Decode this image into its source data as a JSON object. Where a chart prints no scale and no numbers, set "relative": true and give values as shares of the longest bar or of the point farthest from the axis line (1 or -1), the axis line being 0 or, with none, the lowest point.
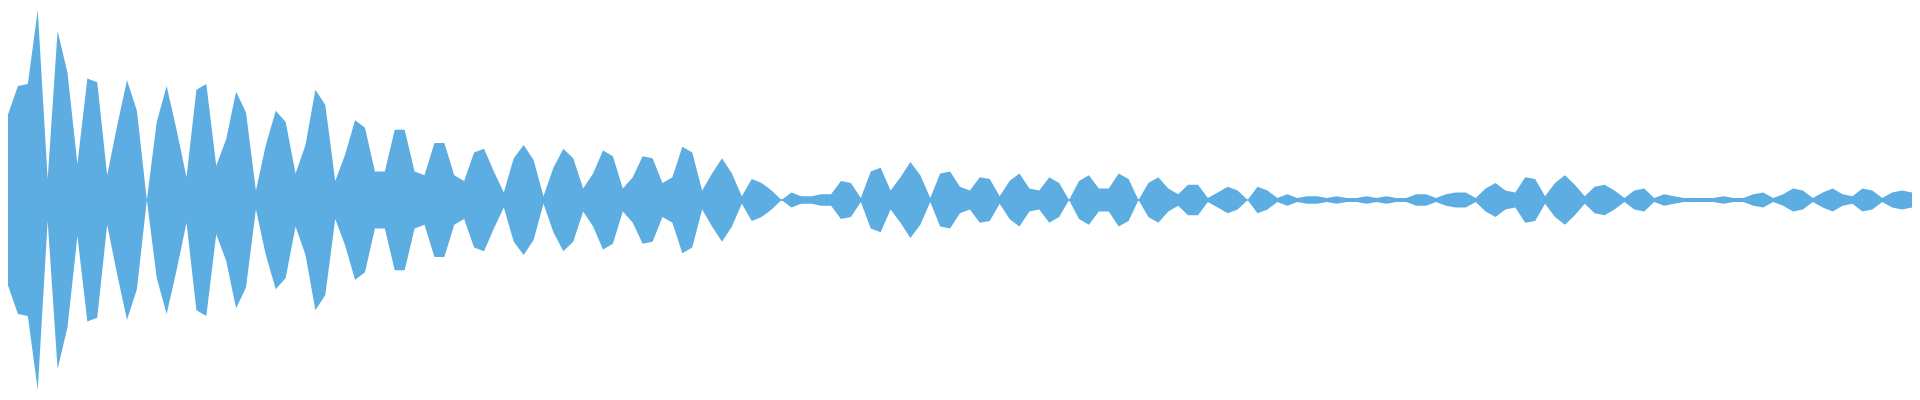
{
  "chart_data": {
    "type": "area",
    "relative": true,
    "ref_lines": [
      {
        "axis": "y",
        "value": 0,
        "color": "#5dade2"
      }
    ],
    "categories": [
      null,
      null,
      null,
      null,
      null,
      null,
      null,
      null,
      null,
      null,
      null,
      null,
      null,
      null,
      null,
      null,
      null,
      null,
      null,
      null,
      null,
      null,
      null,
      null,
      null,
      null,
      null,
      null,
      null,
      null,
      null,
      null,
      null,
      null,
      null,
      null,
      null,
      null,
      null,
      null,
      null,
      null,
      null,
      null,
      null,
      null,
      null,
      null,
      null,
      null,
      null,
      null,
      null,
      null,
      null,
      null,
      null,
      null,
      null,
      null,
      null,
      null,
      null,
      null,
      null,
      null,
      null,
      null,
      null,
      null,
      null,
      null,
      null,
      null,
      null,
      null,
      null,
      null,
      null,
      null,
      null,
      null,
      null,
      null,
      null,
      null,
      null,
      null,
      null,
      null,
      null,
      null,
      null,
      null,
      null,
      null,
      null,
      null,
      null,
      null,
      null,
      null,
      null,
      null,
      null,
      null,
      null,
      null,
      null,
      null,
      null,
      null,
      null,
      null,
      null,
      null,
      null,
      null,
      null,
      null,
      null,
      null,
      null,
      null,
      null,
      null,
      null,
      null,
      null,
      null,
      null,
      null,
      null,
      null,
      null,
      null,
      null,
      null,
      null,
      null,
      null,
      null,
      null,
      null,
      null,
      null,
      null,
      null,
      null,
      null,
      null,
      null,
      null,
      null,
      null,
      null,
      null,
      null,
      null,
      null,
      null,
      null,
      null,
      null,
      null,
      null,
      null,
      null,
      null,
      null,
      null,
      null,
      null,
      null,
      null,
      null,
      null,
      null,
      null,
      null,
      null,
      null,
      null,
      null,
      null,
      null,
      null,
      null,
      null,
      null,
      null,
      null,
      null
    ],
    "series": [
      {
        "color": "#5dade2",
        "values": [
          0.45,
          0.6,
          0.61,
          1,
          0.11,
          0.89,
          0.67,
          0.19,
          0.64,
          0.62,
          0.13,
          0.39,
          0.63,
          0.47,
          0,
          0.41,
          0.6,
          0.37,
          0.12,
          0.58,
          0.61,
          0.18,
          0.32,
          0.57,
          0.46,
          0.05,
          0.29,
          0.47,
          0.41,
          0.14,
          0.29,
          0.58,
          0.5,
          0.1,
          0.24,
          0.42,
          0.38,
          0.15,
          0.15,
          0.37,
          0.37,
          0.15,
          0.13,
          0.3,
          0.3,
          0.13,
          0.1,
          0.25,
          0.27,
          0.15,
          0.04,
          0.22,
          0.29,
          0.21,
          0.02,
          0.17,
          0.27,
          0.22,
          0.06,
          0.14,
          0.26,
          0.23,
          0.06,
          0.12,
          0.23,
          0.22,
          0.09,
          0.12,
          0.28,
          0.25,
          0.05,
          0.14,
          0.22,
          0.14,
          0.02,
          0.11,
          0.09,
          0.05,
          0,
          0.04,
          0.02,
          0.02,
          0.03,
          0.03,
          0.1,
          0.09,
          0.01,
          0.15,
          0.17,
          0.05,
          0.12,
          0.2,
          0.13,
          0.01,
          0.14,
          0.15,
          0.07,
          0.05,
          0.12,
          0.11,
          0.02,
          0.1,
          0.14,
          0.06,
          0.05,
          0.12,
          0.09,
          0,
          0.1,
          0.13,
          0.06,
          0.06,
          0.14,
          0.11,
          0,
          0.09,
          0.12,
          0.06,
          0.03,
          0.08,
          0.08,
          0.01,
          0.04,
          0.07,
          0.05,
          0,
          0.07,
          0.05,
          0.01,
          0.03,
          0.01,
          0.02,
          0.02,
          0.01,
          0.02,
          0.01,
          0.01,
          0.02,
          0.01,
          0.02,
          0.01,
          0.01,
          0.03,
          0.03,
          0.01,
          0.03,
          0.04,
          0.04,
          0.01,
          0.06,
          0.09,
          0.05,
          0.04,
          0.12,
          0.11,
          0.02,
          0.09,
          0.13,
          0.08,
          0.02,
          0.07,
          0.08,
          0.05,
          0.01,
          0.05,
          0.06,
          0.01,
          0.03,
          0.02,
          0.01,
          0.01,
          0.01,
          0.01,
          0.02,
          0.01,
          0.01,
          0.03,
          0.04,
          0.01,
          0.03,
          0.06,
          0.05,
          0.01,
          0.04,
          0.06,
          0.03,
          0.02,
          0.06,
          0.05,
          0.01,
          0.04,
          0.05,
          0.04
        ]
      },
      {
        "color": "#5caee2",
        "values": [
          -0.45,
          -0.6,
          -0.61,
          -1,
          -0.11,
          -0.89,
          -0.67,
          -0.19,
          -0.64,
          -0.62,
          -0.13,
          -0.39,
          -0.63,
          -0.47,
          0,
          -0.41,
          -0.6,
          -0.37,
          -0.12,
          -0.58,
          -0.61,
          -0.18,
          -0.32,
          -0.57,
          -0.46,
          -0.05,
          -0.29,
          -0.47,
          -0.41,
          -0.14,
          -0.29,
          -0.58,
          -0.5,
          -0.1,
          -0.24,
          -0.42,
          -0.38,
          -0.15,
          -0.15,
          -0.37,
          -0.37,
          -0.15,
          -0.13,
          -0.3,
          -0.3,
          -0.13,
          -0.1,
          -0.25,
          -0.27,
          -0.15,
          -0.04,
          -0.22,
          -0.29,
          -0.21,
          -0.02,
          -0.17,
          -0.27,
          -0.22,
          -0.06,
          -0.14,
          -0.26,
          -0.23,
          -0.06,
          -0.12,
          -0.23,
          -0.22,
          -0.09,
          -0.12,
          -0.28,
          -0.25,
          -0.05,
          -0.14,
          -0.22,
          -0.14,
          -0.02,
          -0.11,
          -0.09,
          -0.05,
          0,
          -0.04,
          -0.02,
          -0.02,
          -0.03,
          -0.03,
          -0.1,
          -0.09,
          -0.01,
          -0.15,
          -0.17,
          -0.05,
          -0.12,
          -0.2,
          -0.13,
          -0.01,
          -0.14,
          -0.15,
          -0.07,
          -0.05,
          -0.12,
          -0.11,
          -0.02,
          -0.1,
          -0.14,
          -0.06,
          -0.05,
          -0.12,
          -0.09,
          0,
          -0.1,
          -0.13,
          -0.06,
          -0.06,
          -0.14,
          -0.11,
          0,
          -0.09,
          -0.12,
          -0.06,
          -0.03,
          -0.08,
          -0.08,
          -0.01,
          -0.04,
          -0.07,
          -0.05,
          0,
          -0.07,
          -0.05,
          -0.01,
          -0.03,
          -0.01,
          -0.02,
          -0.02,
          -0.01,
          -0.02,
          -0.01,
          -0.01,
          -0.02,
          -0.01,
          -0.02,
          -0.01,
          -0.01,
          -0.03,
          -0.03,
          -0.01,
          -0.03,
          -0.04,
          -0.04,
          -0.01,
          -0.06,
          -0.09,
          -0.05,
          -0.04,
          -0.12,
          -0.11,
          -0.02,
          -0.09,
          -0.13,
          -0.08,
          -0.02,
          -0.07,
          -0.08,
          -0.05,
          -0.01,
          -0.05,
          -0.06,
          -0.01,
          -0.03,
          -0.02,
          -0.01,
          -0.01,
          -0.01,
          -0.01,
          -0.02,
          -0.01,
          -0.01,
          -0.03,
          -0.04,
          -0.01,
          -0.03,
          -0.06,
          -0.05,
          -0.01,
          -0.04,
          -0.06,
          -0.03,
          -0.02,
          -0.06,
          -0.05,
          -0.01,
          -0.04,
          -0.05,
          -0.04
        ]
      }
    ]
  }
}
